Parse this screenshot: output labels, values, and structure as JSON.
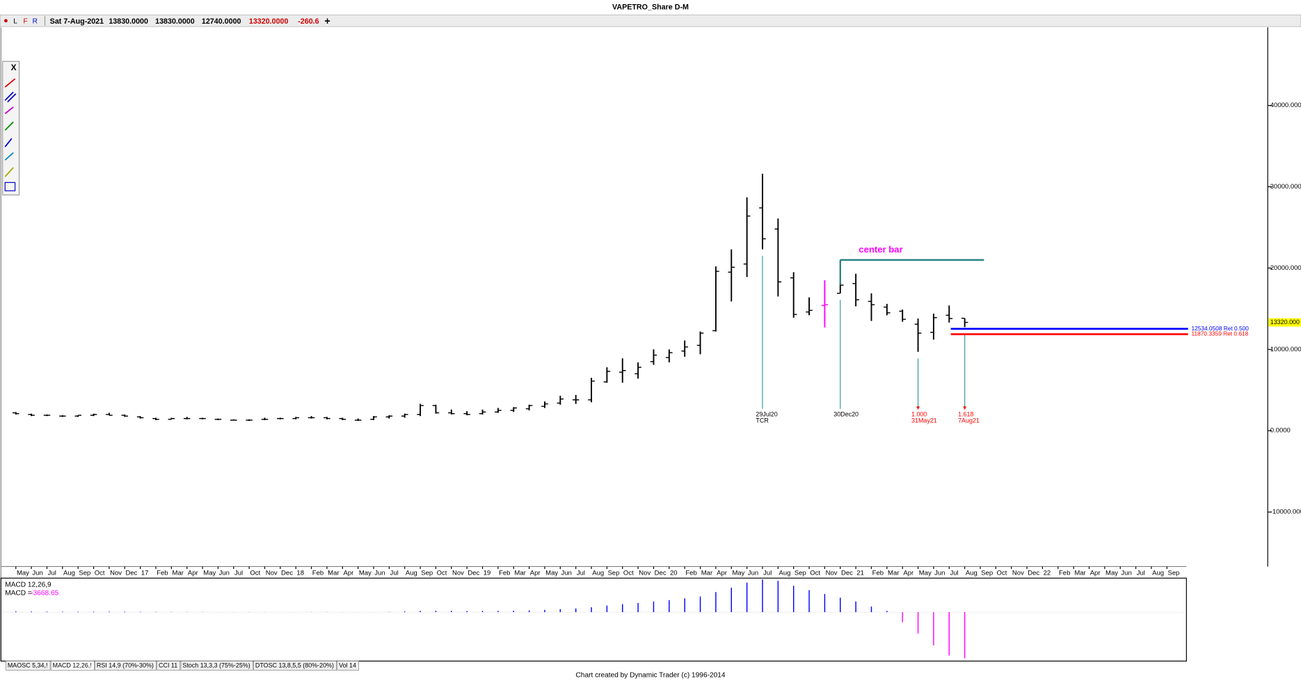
{
  "chart_data": {
    "type": "ohlc",
    "title": "VAPETRO_Share D-M",
    "header": {
      "menu": [
        "L",
        "F",
        "R"
      ],
      "date": "Sat 7-Aug-2021",
      "open": "13830.0000",
      "high": "13830.0000",
      "low": "12740.0000",
      "close": "13320.0000",
      "change": "-260.6",
      "add": "+"
    },
    "toolbar_close": "X",
    "categories": [
      "May",
      "Jun",
      "Jul",
      "Aug",
      "Sep",
      "Oct",
      "Nov",
      "Dec",
      "17",
      "Feb",
      "Mar",
      "Apr",
      "May",
      "Jun",
      "Jul",
      "Oct",
      "Nov",
      "Dec",
      "18",
      "Feb",
      "Mar",
      "Apr",
      "May",
      "Jun",
      "Jul",
      "Aug",
      "Sep",
      "Oct",
      "Nov",
      "Dec",
      "19",
      "Feb",
      "Mar",
      "Apr",
      "May",
      "Jun",
      "Jul",
      "Aug",
      "Sep",
      "Oct",
      "Nov",
      "Dec",
      "20",
      "Feb",
      "Mar",
      "Apr",
      "May",
      "Jun",
      "Jul",
      "Aug",
      "Sep",
      "Oct",
      "Nov",
      "Dec",
      "21",
      "Feb",
      "Mar",
      "Apr",
      "May",
      "Jun",
      "Jul",
      "Aug",
      "Sep",
      "Oct",
      "Nov",
      "Dec",
      "22",
      "Feb",
      "Mar",
      "Apr",
      "May",
      "Jun",
      "Jul",
      "Aug",
      "Sep"
    ],
    "ohlc": {
      "color": "#000000",
      "open": [
        2200,
        2000,
        1900,
        1800,
        1800,
        1900,
        2000,
        1900,
        1700,
        1500,
        1400,
        1500,
        1500,
        1400,
        1300,
        1300,
        1400,
        1500,
        1500,
        1600,
        1600,
        1500,
        1300,
        1400,
        1700,
        1800,
        2000,
        3100,
        2200,
        2100,
        2100,
        2300,
        2500,
        2700,
        3000,
        3400,
        3800,
        3800,
        6000,
        7200,
        7000,
        8500,
        9000,
        9800,
        10500,
        12300,
        19500,
        20500,
        27400,
        24800,
        18800,
        14600,
        15400,
        16900,
        18100,
        15900,
        15200,
        14700,
        13100,
        12100,
        14200,
        13830,
        null,
        null,
        null,
        null,
        null,
        null,
        null,
        null,
        null,
        null,
        null,
        null,
        null
      ],
      "high": [
        2300,
        2100,
        2000,
        1900,
        1900,
        2100,
        2200,
        2000,
        1800,
        1600,
        1600,
        1700,
        1600,
        1500,
        1400,
        1400,
        1600,
        1600,
        1700,
        1800,
        1700,
        1600,
        1500,
        1800,
        1900,
        2100,
        3300,
        3200,
        2600,
        2400,
        2600,
        2800,
        2900,
        3200,
        3600,
        4300,
        4400,
        6500,
        7800,
        8900,
        8400,
        10000,
        10000,
        11100,
        12200,
        20200,
        22300,
        28700,
        31600,
        26100,
        19500,
        16400,
        18500,
        21000,
        19300,
        16900,
        15600,
        14900,
        13800,
        14400,
        15400,
        13830,
        null,
        null,
        null,
        null,
        null,
        null,
        null,
        null,
        null,
        null,
        null,
        null,
        null
      ],
      "low": [
        2000,
        1800,
        1800,
        1700,
        1700,
        1800,
        1900,
        1700,
        1500,
        1300,
        1400,
        1400,
        1400,
        1300,
        1300,
        1200,
        1300,
        1400,
        1400,
        1500,
        1400,
        1300,
        1200,
        1300,
        1500,
        1600,
        1800,
        2100,
        2000,
        1900,
        2000,
        2200,
        2300,
        2500,
        2800,
        3200,
        3300,
        3500,
        5900,
        5900,
        6400,
        8100,
        8400,
        9100,
        9400,
        12200,
        15900,
        18900,
        22300,
        16500,
        13900,
        14200,
        12700,
        16900,
        15300,
        13500,
        14200,
        13400,
        9700,
        11200,
        13300,
        12740,
        null,
        null,
        null,
        null,
        null,
        null,
        null,
        null,
        null,
        null,
        null,
        null,
        null
      ],
      "close": [
        2100,
        1900,
        1900,
        1800,
        1900,
        2000,
        1900,
        1800,
        1600,
        1400,
        1500,
        1500,
        1500,
        1400,
        1300,
        1300,
        1400,
        1500,
        1600,
        1600,
        1500,
        1400,
        1300,
        1700,
        1800,
        2000,
        3100,
        2200,
        2100,
        2000,
        2300,
        2500,
        2800,
        3100,
        3300,
        3900,
        3800,
        6100,
        7300,
        7400,
        7800,
        9300,
        9600,
        10300,
        12000,
        19600,
        20100,
        26400,
        23600,
        18300,
        14300,
        14800,
        15500,
        17900,
        16100,
        15500,
        14500,
        13700,
        12000,
        13900,
        13800,
        13320,
        null,
        null,
        null,
        null,
        null,
        null,
        null,
        null,
        null,
        null,
        null,
        null,
        null
      ]
    },
    "highlight": {
      "index": 52,
      "color": "#ff00ff"
    },
    "ylim": [
      -16700,
      49600
    ],
    "yticks": [
      {
        "value": 40000,
        "label": "40000.000"
      },
      {
        "value": 30000,
        "label": "30000.000"
      },
      {
        "value": 20000,
        "label": "20000.000"
      },
      {
        "value": 10000,
        "label": "10000.000"
      },
      {
        "value": 0,
        "label": "0.0000"
      },
      {
        "value": -10000,
        "label": "-10000.000"
      }
    ],
    "last_price": {
      "value": 13320,
      "label": "13320.000",
      "color": "#ffff00"
    },
    "center_bar": {
      "label": "center bar",
      "value": 21000,
      "color": "#1f7f7f",
      "label_color": "#ff00ff"
    },
    "retracements": [
      {
        "value": 12534.0508,
        "label": "12534.0508 Ret 0.500",
        "color": "#0000ff"
      },
      {
        "value": 11870.3359,
        "label": "11870.3359 Ret 0.618",
        "color": "#ff0000"
      }
    ],
    "time_markers": [
      {
        "labels": [
          "29Jul20",
          "TCR"
        ],
        "label_color": "#000000",
        "line_color": "#3a9a9a"
      },
      {
        "labels": [
          "30Dec20"
        ],
        "label_color": "#000000",
        "line_color": "#3a9a9a"
      },
      {
        "labels": [
          "1.000",
          "31May21"
        ],
        "label_color": "#ff0000",
        "line_color": "#3a9a9a"
      },
      {
        "labels": [
          "1.618",
          "7Aug21"
        ],
        "label_color": "#ff0000",
        "line_color": "#3a9a9a"
      }
    ],
    "macd": {
      "label": "MACD 12,26,9",
      "readout_prefix": "MACD =",
      "readout": "-3668.65",
      "positive_color": "#0000ff",
      "negative_color": "#ff00ff",
      "values": [
        60,
        50,
        40,
        40,
        35,
        40,
        45,
        40,
        30,
        20,
        15,
        15,
        10,
        5,
        -10,
        -15,
        -10,
        -5,
        5,
        10,
        10,
        5,
        -5,
        5,
        20,
        60,
        100,
        110,
        100,
        90,
        95,
        100,
        110,
        140,
        180,
        240,
        300,
        390,
        520,
        640,
        730,
        850,
        960,
        1100,
        1250,
        1600,
        1950,
        2350,
        2600,
        2500,
        2100,
        1750,
        1450,
        1150,
        850,
        450,
        100,
        -800,
        -1700,
        -2650,
        -3450,
        -3668.65,
        null,
        null,
        null,
        null,
        null,
        null,
        null,
        null,
        null,
        null,
        null,
        null,
        null
      ]
    },
    "tabs": [
      "MAOSC 5,34,!",
      "MACD 12,26,!",
      "RSI 14,9 (70%-30%)",
      "CCI 11",
      "Stoch 13,3,3 (75%-25%)",
      "DTOSC 13,8,5,5 (80%-20%)",
      "Vol 14"
    ],
    "footer": "Chart created by Dynamic Trader  (c) 1996-2014"
  }
}
